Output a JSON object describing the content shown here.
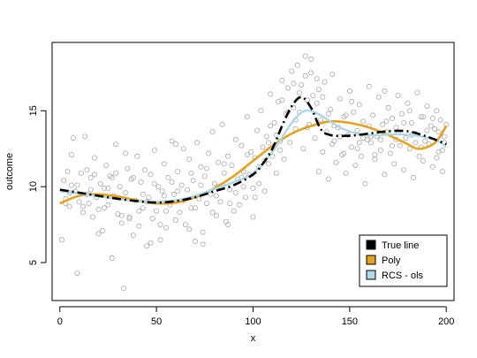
{
  "chart_data": {
    "type": "scatter",
    "xlabel": "x",
    "ylabel": "outcome",
    "xlim": [
      -4,
      204
    ],
    "ylim": [
      2.5,
      19.5
    ],
    "x_ticks": [
      0,
      50,
      100,
      150,
      200
    ],
    "y_ticks": [
      5,
      10,
      15
    ],
    "grid": false,
    "legend_position": "bottom-right",
    "colors": {
      "points": "#aaaaaa",
      "true_line": "#000000",
      "poly": "#e6a11f",
      "rcs": "#add8e6"
    },
    "legend": [
      {
        "label": "True line",
        "color": "#000000"
      },
      {
        "label": "Poly",
        "color": "#e6a11f"
      },
      {
        "label": "RCS - ols",
        "color": "#add8e6"
      }
    ],
    "true_line": [
      [
        0,
        9.8
      ],
      [
        10,
        9.6
      ],
      [
        20,
        9.4
      ],
      [
        30,
        9.2
      ],
      [
        40,
        9.05
      ],
      [
        50,
        8.95
      ],
      [
        60,
        9.05
      ],
      [
        70,
        9.3
      ],
      [
        80,
        9.7
      ],
      [
        90,
        10.1
      ],
      [
        100,
        10.8
      ],
      [
        105,
        11.5
      ],
      [
        110,
        12.5
      ],
      [
        115,
        14.0
      ],
      [
        120,
        15.3
      ],
      [
        125,
        15.9
      ],
      [
        130,
        15.2
      ],
      [
        135,
        13.8
      ],
      [
        140,
        13.4
      ],
      [
        150,
        13.35
      ],
      [
        160,
        13.5
      ],
      [
        170,
        13.65
      ],
      [
        180,
        13.65
      ],
      [
        190,
        13.3
      ],
      [
        200,
        12.8
      ]
    ],
    "poly": [
      [
        0,
        8.9
      ],
      [
        10,
        9.4
      ],
      [
        20,
        9.5
      ],
      [
        30,
        9.35
      ],
      [
        40,
        9.1
      ],
      [
        50,
        8.9
      ],
      [
        60,
        8.95
      ],
      [
        70,
        9.3
      ],
      [
        80,
        9.9
      ],
      [
        90,
        10.7
      ],
      [
        100,
        11.7
      ],
      [
        110,
        12.7
      ],
      [
        120,
        13.5
      ],
      [
        130,
        14.0
      ],
      [
        140,
        14.3
      ],
      [
        150,
        14.2
      ],
      [
        160,
        13.9
      ],
      [
        170,
        13.4
      ],
      [
        180,
        12.8
      ],
      [
        185,
        12.5
      ],
      [
        190,
        12.6
      ],
      [
        195,
        13.0
      ],
      [
        200,
        14.0
      ]
    ],
    "rcs": [
      [
        0,
        9.7
      ],
      [
        10,
        9.55
      ],
      [
        20,
        9.35
      ],
      [
        30,
        9.2
      ],
      [
        40,
        9.05
      ],
      [
        50,
        9.0
      ],
      [
        60,
        9.1
      ],
      [
        70,
        9.4
      ],
      [
        80,
        9.85
      ],
      [
        90,
        10.3
      ],
      [
        100,
        10.9
      ],
      [
        110,
        12.3
      ],
      [
        120,
        14.2
      ],
      [
        127,
        15.0
      ],
      [
        135,
        14.7
      ],
      [
        145,
        13.9
      ],
      [
        155,
        13.45
      ],
      [
        165,
        13.4
      ],
      [
        175,
        13.45
      ],
      [
        185,
        13.35
      ],
      [
        195,
        13.05
      ],
      [
        200,
        12.6
      ]
    ],
    "points": [
      [
        1,
        6.5
      ],
      [
        2,
        10.4
      ],
      [
        3,
        9.2
      ],
      [
        4,
        11.0
      ],
      [
        5,
        8.7
      ],
      [
        6,
        10.1
      ],
      [
        7,
        13.2
      ],
      [
        8,
        9.7
      ],
      [
        9,
        4.3
      ],
      [
        10,
        9.0
      ],
      [
        11,
        10.9
      ],
      [
        12,
        8.3
      ],
      [
        13,
        13.3
      ],
      [
        14,
        9.5
      ],
      [
        15,
        8.9
      ],
      [
        16,
        10.6
      ],
      [
        17,
        8.0
      ],
      [
        18,
        11.9
      ],
      [
        19,
        9.3
      ],
      [
        20,
        8.5
      ],
      [
        21,
        10.2
      ],
      [
        22,
        7.1
      ],
      [
        23,
        9.9
      ],
      [
        24,
        11.4
      ],
      [
        25,
        8.8
      ],
      [
        26,
        10.7
      ],
      [
        27,
        5.3
      ],
      [
        28,
        9.4
      ],
      [
        29,
        12.8
      ],
      [
        30,
        8.2
      ],
      [
        31,
        10.0
      ],
      [
        32,
        7.6
      ],
      [
        33,
        3.3
      ],
      [
        34,
        9.6
      ],
      [
        35,
        11.2
      ],
      [
        36,
        8.0
      ],
      [
        37,
        10.5
      ],
      [
        38,
        6.8
      ],
      [
        39,
        9.1
      ],
      [
        40,
        12.0
      ],
      [
        41,
        7.4
      ],
      [
        42,
        10.3
      ],
      [
        43,
        8.6
      ],
      [
        44,
        11.1
      ],
      [
        45,
        6.1
      ],
      [
        46,
        9.3
      ],
      [
        47,
        10.8
      ],
      [
        48,
        7.9
      ],
      [
        49,
        12.4
      ],
      [
        50,
        8.4
      ],
      [
        51,
        10.0
      ],
      [
        52,
        6.5
      ],
      [
        53,
        9.7
      ],
      [
        54,
        11.5
      ],
      [
        55,
        7.3
      ],
      [
        56,
        10.6
      ],
      [
        57,
        8.8
      ],
      [
        58,
        13.0
      ],
      [
        59,
        9.5
      ],
      [
        60,
        7.8
      ],
      [
        61,
        11.0
      ],
      [
        62,
        8.3
      ],
      [
        63,
        10.1
      ],
      [
        64,
        12.5
      ],
      [
        65,
        7.5
      ],
      [
        66,
        9.8
      ],
      [
        67,
        11.8
      ],
      [
        68,
        8.6
      ],
      [
        69,
        10.4
      ],
      [
        70,
        6.4
      ],
      [
        71,
        12.9
      ],
      [
        72,
        9.2
      ],
      [
        73,
        11.3
      ],
      [
        74,
        7.0
      ],
      [
        75,
        10.7
      ],
      [
        76,
        8.9
      ],
      [
        77,
        12.2
      ],
      [
        78,
        9.5
      ],
      [
        79,
        13.6
      ],
      [
        80,
        10.2
      ],
      [
        81,
        8.1
      ],
      [
        82,
        11.6
      ],
      [
        83,
        9.0
      ],
      [
        84,
        14.1
      ],
      [
        85,
        10.9
      ],
      [
        86,
        7.7
      ],
      [
        87,
        12.0
      ],
      [
        88,
        9.8
      ],
      [
        89,
        11.4
      ],
      [
        90,
        8.4
      ],
      [
        91,
        13.1
      ],
      [
        92,
        10.5
      ],
      [
        93,
        8.8
      ],
      [
        94,
        12.7
      ],
      [
        95,
        11.0
      ],
      [
        96,
        9.3
      ],
      [
        97,
        14.6
      ],
      [
        98,
        10.8
      ],
      [
        99,
        12.3
      ],
      [
        100,
        8.0
      ],
      [
        101,
        11.9
      ],
      [
        102,
        13.7
      ],
      [
        103,
        10.2
      ],
      [
        104,
        15.0
      ],
      [
        105,
        12.6
      ],
      [
        106,
        9.7
      ],
      [
        107,
        13.3
      ],
      [
        108,
        11.5
      ],
      [
        109,
        16.1
      ],
      [
        110,
        12.0
      ],
      [
        111,
        14.2
      ],
      [
        112,
        10.9
      ],
      [
        113,
        15.6
      ],
      [
        114,
        13.0
      ],
      [
        115,
        17.0
      ],
      [
        116,
        11.8
      ],
      [
        117,
        14.8
      ],
      [
        118,
        16.5
      ],
      [
        119,
        12.9
      ],
      [
        120,
        17.6
      ],
      [
        121,
        15.2
      ],
      [
        122,
        13.8
      ],
      [
        123,
        18.0
      ],
      [
        124,
        14.9
      ],
      [
        125,
        16.7
      ],
      [
        126,
        12.5
      ],
      [
        127,
        17.3
      ],
      [
        128,
        15.7
      ],
      [
        129,
        14.1
      ],
      [
        130,
        18.4
      ],
      [
        131,
        16.0
      ],
      [
        132,
        13.2
      ],
      [
        133,
        15.5
      ],
      [
        134,
        11.0
      ],
      [
        135,
        14.4
      ],
      [
        136,
        12.3
      ],
      [
        137,
        16.9
      ],
      [
        138,
        13.6
      ],
      [
        139,
        10.5
      ],
      [
        140,
        15.1
      ],
      [
        141,
        12.8
      ],
      [
        142,
        14.0
      ],
      [
        143,
        11.6
      ],
      [
        144,
        13.9
      ],
      [
        145,
        15.8
      ],
      [
        146,
        12.1
      ],
      [
        147,
        14.6
      ],
      [
        148,
        10.9
      ],
      [
        149,
        13.4
      ],
      [
        150,
        16.3
      ],
      [
        151,
        12.6
      ],
      [
        152,
        14.9
      ],
      [
        153,
        11.4
      ],
      [
        154,
        13.7
      ],
      [
        155,
        15.4
      ],
      [
        156,
        12.0
      ],
      [
        157,
        14.3
      ],
      [
        158,
        10.2
      ],
      [
        159,
        13.1
      ],
      [
        160,
        16.6
      ],
      [
        161,
        12.9
      ],
      [
        162,
        14.7
      ],
      [
        163,
        11.8
      ],
      [
        164,
        13.3
      ],
      [
        165,
        15.9
      ],
      [
        166,
        12.4
      ],
      [
        167,
        14.1
      ],
      [
        168,
        10.8
      ],
      [
        169,
        13.6
      ],
      [
        170,
        15.2
      ],
      [
        171,
        12.2
      ],
      [
        172,
        14.5
      ],
      [
        173,
        11.5
      ],
      [
        174,
        13.9
      ],
      [
        175,
        16.0
      ],
      [
        176,
        12.7
      ],
      [
        177,
        14.8
      ],
      [
        178,
        11.1
      ],
      [
        179,
        13.2
      ],
      [
        180,
        15.5
      ],
      [
        181,
        12.5
      ],
      [
        182,
        14.2
      ],
      [
        183,
        10.6
      ],
      [
        184,
        13.5
      ],
      [
        185,
        16.2
      ],
      [
        186,
        12.0
      ],
      [
        187,
        14.6
      ],
      [
        188,
        11.7
      ],
      [
        189,
        13.0
      ],
      [
        190,
        15.3
      ],
      [
        191,
        12.8
      ],
      [
        192,
        14.0
      ],
      [
        193,
        11.3
      ],
      [
        194,
        13.8
      ],
      [
        195,
        15.0
      ],
      [
        196,
        12.3
      ],
      [
        197,
        14.4
      ],
      [
        198,
        11.0
      ],
      [
        199,
        13.3
      ],
      [
        200,
        14.1
      ],
      [
        5,
        9.6
      ],
      [
        12,
        8.7
      ],
      [
        18,
        10.8
      ],
      [
        25,
        9.9
      ],
      [
        32,
        8.1
      ],
      [
        38,
        10.6
      ],
      [
        45,
        9.0
      ],
      [
        52,
        7.5
      ],
      [
        58,
        10.3
      ],
      [
        64,
        9.1
      ],
      [
        70,
        8.6
      ],
      [
        76,
        11.2
      ],
      [
        82,
        10.0
      ],
      [
        88,
        8.9
      ],
      [
        94,
        10.6
      ],
      [
        100,
        9.9
      ],
      [
        106,
        11.7
      ],
      [
        112,
        13.4
      ],
      [
        118,
        14.9
      ],
      [
        124,
        16.2
      ],
      [
        130,
        17.5
      ],
      [
        136,
        15.9
      ],
      [
        142,
        13.0
      ],
      [
        148,
        14.7
      ],
      [
        154,
        12.5
      ],
      [
        160,
        14.0
      ],
      [
        166,
        13.1
      ],
      [
        172,
        12.7
      ],
      [
        178,
        14.2
      ],
      [
        184,
        12.9
      ],
      [
        190,
        13.7
      ],
      [
        196,
        13.6
      ],
      [
        3,
        8.9
      ],
      [
        9,
        10.1
      ],
      [
        16,
        9.8
      ],
      [
        23,
        8.6
      ],
      [
        29,
        10.9
      ],
      [
        36,
        7.9
      ],
      [
        43,
        9.5
      ],
      [
        49,
        10.2
      ],
      [
        55,
        8.4
      ],
      [
        61,
        9.7
      ],
      [
        67,
        7.2
      ],
      [
        73,
        10.1
      ],
      [
        79,
        8.3
      ],
      [
        85,
        11.5
      ],
      [
        91,
        9.6
      ],
      [
        97,
        12.1
      ],
      [
        103,
        11.3
      ],
      [
        109,
        14.0
      ],
      [
        115,
        15.7
      ],
      [
        121,
        16.8
      ],
      [
        127,
        18.6
      ],
      [
        133,
        17.1
      ],
      [
        139,
        14.8
      ],
      [
        145,
        13.3
      ],
      [
        151,
        15.6
      ],
      [
        157,
        13.2
      ],
      [
        163,
        12.1
      ],
      [
        169,
        14.3
      ],
      [
        175,
        13.6
      ],
      [
        181,
        15.0
      ],
      [
        187,
        12.6
      ],
      [
        193,
        14.5
      ],
      [
        199,
        12.9
      ],
      [
        14,
        11.1
      ],
      [
        27,
        10.6
      ],
      [
        41,
        8.4
      ],
      [
        54,
        9.4
      ],
      [
        68,
        10.9
      ],
      [
        81,
        9.4
      ],
      [
        95,
        10.0
      ],
      [
        108,
        12.9
      ],
      [
        122,
        14.4
      ],
      [
        134,
        16.4
      ],
      [
        147,
        12.2
      ],
      [
        161,
        13.3
      ],
      [
        174,
        13.1
      ],
      [
        188,
        14.6
      ],
      [
        198,
        12.4
      ],
      [
        6,
        12.1
      ],
      [
        20,
        6.9
      ],
      [
        34,
        12.2
      ],
      [
        47,
        6.3
      ],
      [
        60,
        12.8
      ],
      [
        74,
        6.2
      ],
      [
        87,
        7.5
      ],
      [
        101,
        9.3
      ],
      [
        114,
        12.4
      ],
      [
        128,
        13.9
      ],
      [
        141,
        17.4
      ],
      [
        155,
        12.9
      ],
      [
        168,
        16.3
      ],
      [
        182,
        13.4
      ],
      [
        195,
        11.9
      ]
    ]
  }
}
